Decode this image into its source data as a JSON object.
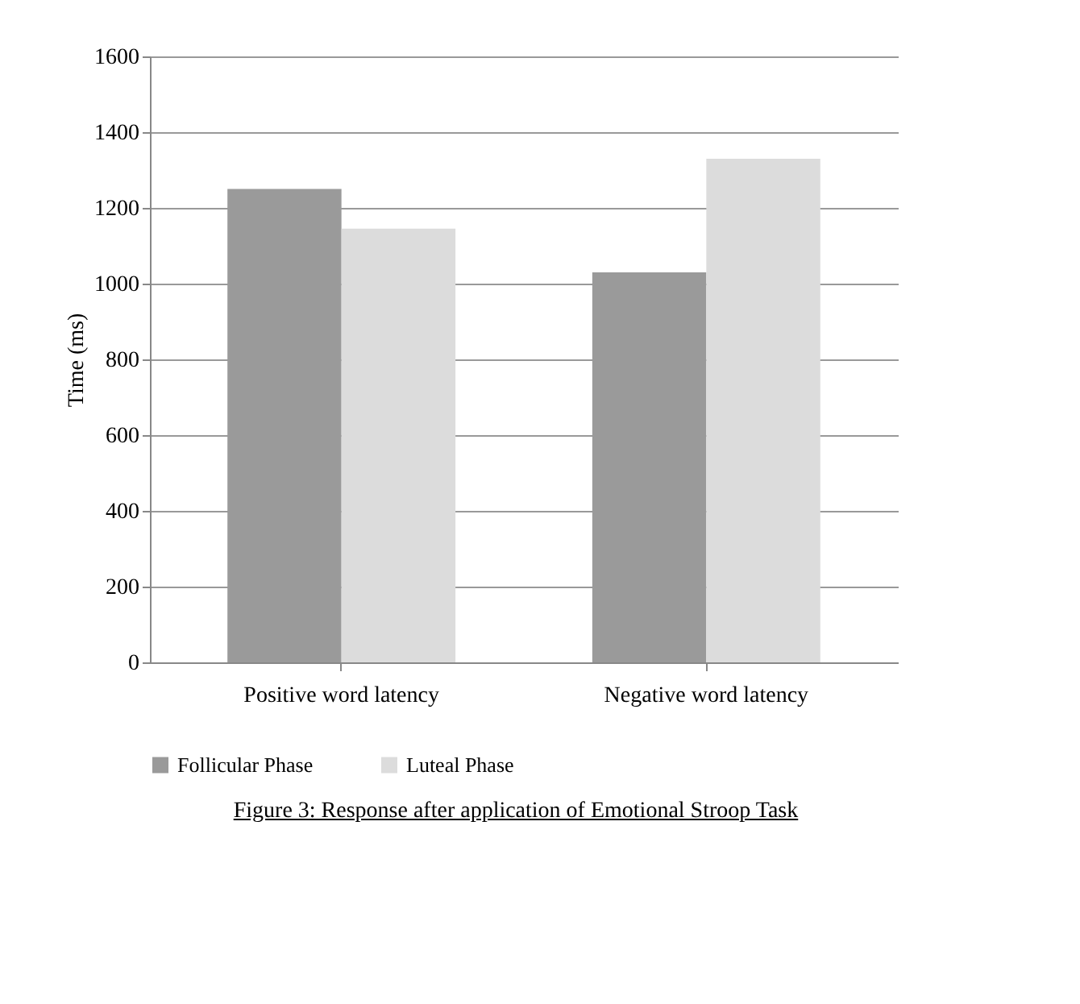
{
  "chart_data": {
    "type": "bar",
    "ylabel": "Time (ms)",
    "categories": [
      "Positive word latency",
      "Negative word latency"
    ],
    "series": [
      {
        "name": "Follicular Phase",
        "color": "#9a9a9a",
        "values": [
          1250,
          1030
        ]
      },
      {
        "name": "Luteal Phase",
        "color": "#dcdcdc",
        "values": [
          1145,
          1330
        ]
      }
    ],
    "ylim": [
      0,
      1600
    ],
    "yticks": [
      0,
      200,
      400,
      600,
      800,
      1000,
      1200,
      1400,
      1600
    ],
    "grid": "y",
    "legend": "bottom",
    "annotations": [
      "Figure 3: Response after application of Emotional Stroop Task"
    ]
  }
}
